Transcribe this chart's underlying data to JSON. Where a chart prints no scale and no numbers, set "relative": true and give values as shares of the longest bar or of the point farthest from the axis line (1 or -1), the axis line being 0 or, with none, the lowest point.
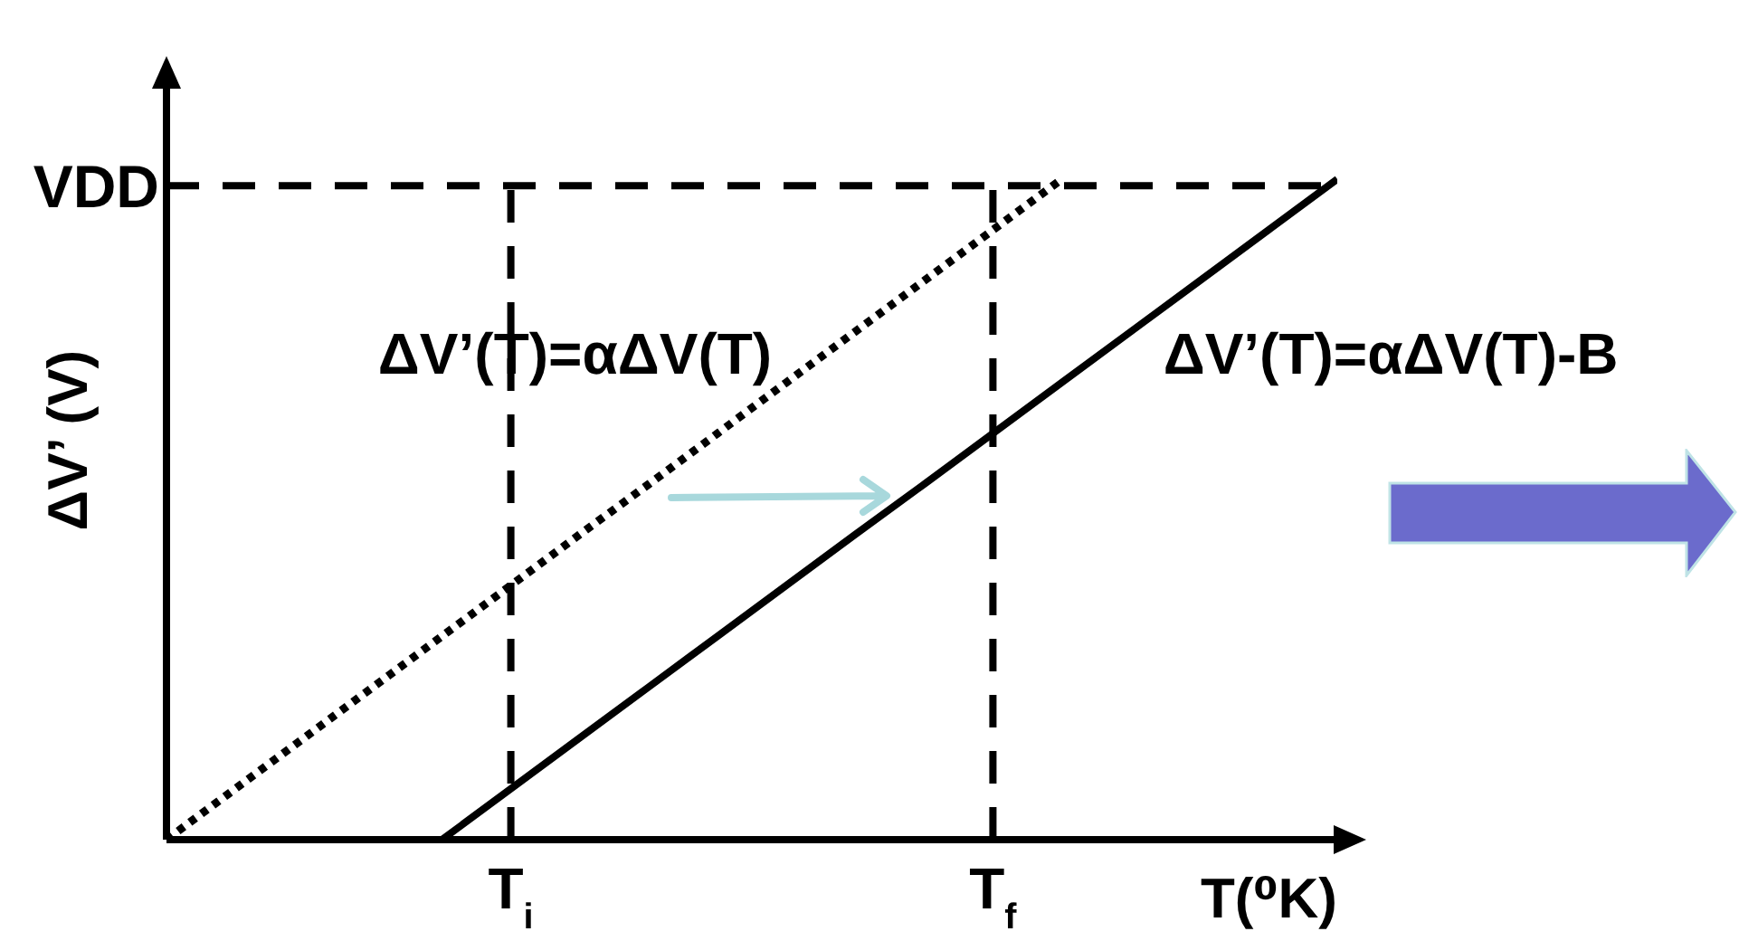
{
  "chart_data": {
    "type": "line",
    "relative": true,
    "xlabel": "T(⁰K)",
    "ylabel": "ΔV’ (V)",
    "categories": [
      null,
      null,
      null,
      null,
      null,
      "T$_{i}$",
      null,
      null,
      null,
      null,
      null,
      null,
      "T$_{f}$",
      null,
      null,
      null,
      null,
      null
    ],
    "series": [
      {
        "name": "ΔV’(T)=αΔV(T)",
        "color": "#000000",
        "line_style": "dotted",
        "values": [
          0,
          0.077,
          0.154,
          0.231,
          0.308,
          0.385,
          0.462,
          0.538,
          0.615,
          0.692,
          0.769,
          0.846,
          0.923,
          1,
          null,
          null,
          null,
          null
        ]
      },
      {
        "name": "ΔV’(T)=αΔV(T)-B",
        "color": "#000000",
        "line_style": "solid",
        "values": [
          null,
          null,
          null,
          null,
          0,
          0.077,
          0.154,
          0.231,
          0.308,
          0.385,
          0.462,
          0.538,
          0.615,
          0.692,
          0.769,
          0.846,
          0.923,
          1
        ]
      }
    ],
    "ref_lines": [
      {
        "axis": "y",
        "value": 0.99,
        "label": "VDD",
        "color": "#000000",
        "line_style": "dashed"
      },
      {
        "axis": "x",
        "value": "T$_{i}$",
        "color": "#000000",
        "line_style": "dashed"
      },
      {
        "axis": "x",
        "value": "T$_{f}$",
        "color": "#000000",
        "line_style": "dashed"
      }
    ],
    "marker": "none"
  }
}
